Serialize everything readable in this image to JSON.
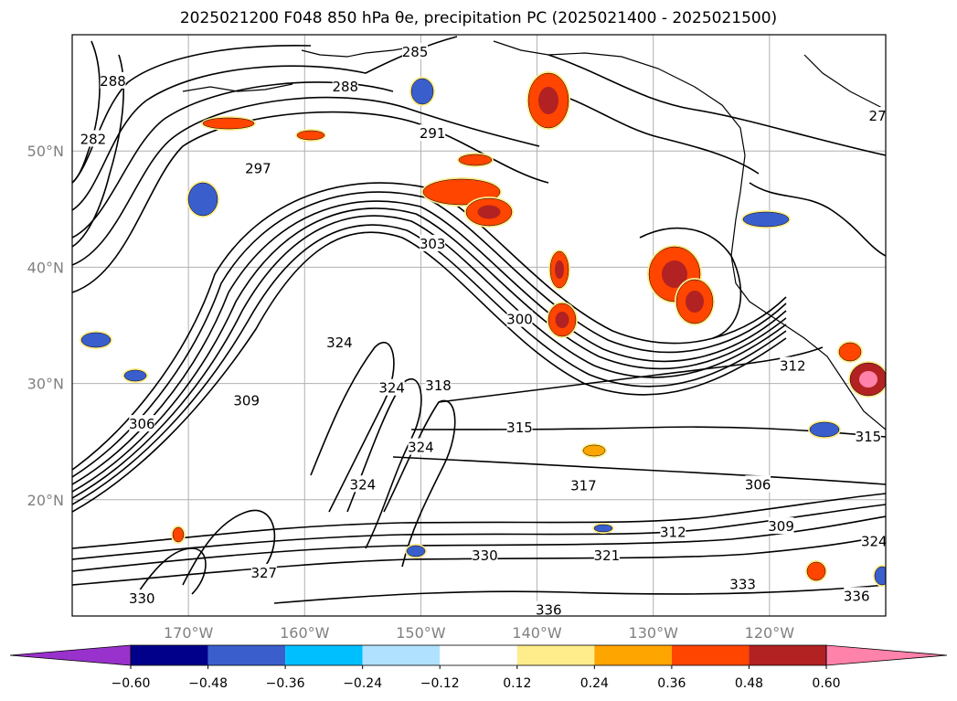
{
  "title": "2025021200 F048 850 hPa θe, precipitation PC (2025021400 - 2025021500)",
  "colors": {
    "contour": "#000000",
    "grid": "#b0b0b0",
    "land": "#000000"
  },
  "chart_data": {
    "type": "heatmap",
    "title": "2025021200 F048 850 hPa θe, precipitation PC (2025021400 - 2025021500)",
    "xlim": [
      -180,
      -110
    ],
    "ylim": [
      10,
      60
    ],
    "lat_ticks": [
      "20°N",
      "30°N",
      "40°N",
      "50°N"
    ],
    "lat_values": [
      20,
      30,
      40,
      50
    ],
    "lon_ticks": [
      "170°W",
      "160°W",
      "150°W",
      "140°W",
      "130°W",
      "120°W"
    ],
    "lon_values": [
      -170,
      -160,
      -150,
      -140,
      -130,
      -120
    ],
    "colorbar": {
      "boundaries": [
        -0.72,
        -0.6,
        -0.48,
        -0.36,
        -0.24,
        -0.12,
        0.12,
        0.24,
        0.36,
        0.48,
        0.6,
        0.72
      ],
      "tick_labels": [
        "−0.60",
        "−0.48",
        "−0.36",
        "−0.24",
        "−0.12",
        "0.12",
        "0.24",
        "0.36",
        "0.48",
        "0.60"
      ],
      "colors": [
        "#9932cc",
        "#00008b",
        "#3a5fcd",
        "#00bfff",
        "#b0e2ff",
        "#ffffff",
        "#ffec8b",
        "#ffa500",
        "#ff4500",
        "#b22222",
        "#ff82ab"
      ],
      "extend": "both"
    },
    "contour_labels": [
      {
        "text": "285",
        "lon": -150.5,
        "lat": 58.5
      },
      {
        "text": "288",
        "lon": -156.5,
        "lat": 55.5
      },
      {
        "text": "291",
        "lon": -149,
        "lat": 51.5
      },
      {
        "text": "297",
        "lon": -164,
        "lat": 48.5
      },
      {
        "text": "303",
        "lon": -149,
        "lat": 42
      },
      {
        "text": "300",
        "lon": -141.5,
        "lat": 35.5
      },
      {
        "text": "312",
        "lon": -118,
        "lat": 31.5
      },
      {
        "text": "309",
        "lon": -165,
        "lat": 28.5
      },
      {
        "text": "306",
        "lon": -174,
        "lat": 26.5
      },
      {
        "text": "315",
        "lon": -141.5,
        "lat": 26.2
      },
      {
        "text": "318",
        "lon": -148.5,
        "lat": 29.8
      },
      {
        "text": "324",
        "lon": -152.5,
        "lat": 29.6
      },
      {
        "text": "324",
        "lon": -150,
        "lat": 24.5
      },
      {
        "text": "324",
        "lon": -157,
        "lat": 33.5
      },
      {
        "text": "324",
        "lon": -155,
        "lat": 21.3
      },
      {
        "text": "317",
        "lon": -136,
        "lat": 21.2
      },
      {
        "text": "306",
        "lon": -121,
        "lat": 21.3
      },
      {
        "text": "309",
        "lon": -119,
        "lat": 17.7
      },
      {
        "text": "312",
        "lon": -128.3,
        "lat": 17.2
      },
      {
        "text": "321",
        "lon": -134,
        "lat": 15.2
      },
      {
        "text": "330",
        "lon": -144.5,
        "lat": 15.2
      },
      {
        "text": "324",
        "lon": -111,
        "lat": 16.4
      },
      {
        "text": "333",
        "lon": -122.3,
        "lat": 12.7
      },
      {
        "text": "336",
        "lon": -139,
        "lat": 10.5
      },
      {
        "text": "336",
        "lon": -112.5,
        "lat": 11.7
      },
      {
        "text": "327",
        "lon": -163.5,
        "lat": 13.7
      },
      {
        "text": "330",
        "lon": -174,
        "lat": 11.5
      },
      {
        "text": "315",
        "lon": -111.5,
        "lat": 25.4
      },
      {
        "text": "282",
        "lon": -178.2,
        "lat": 51
      },
      {
        "text": "288",
        "lon": -176.5,
        "lat": 56
      },
      {
        "text": "27",
        "lon": -110.7,
        "lat": 53
      }
    ]
  }
}
